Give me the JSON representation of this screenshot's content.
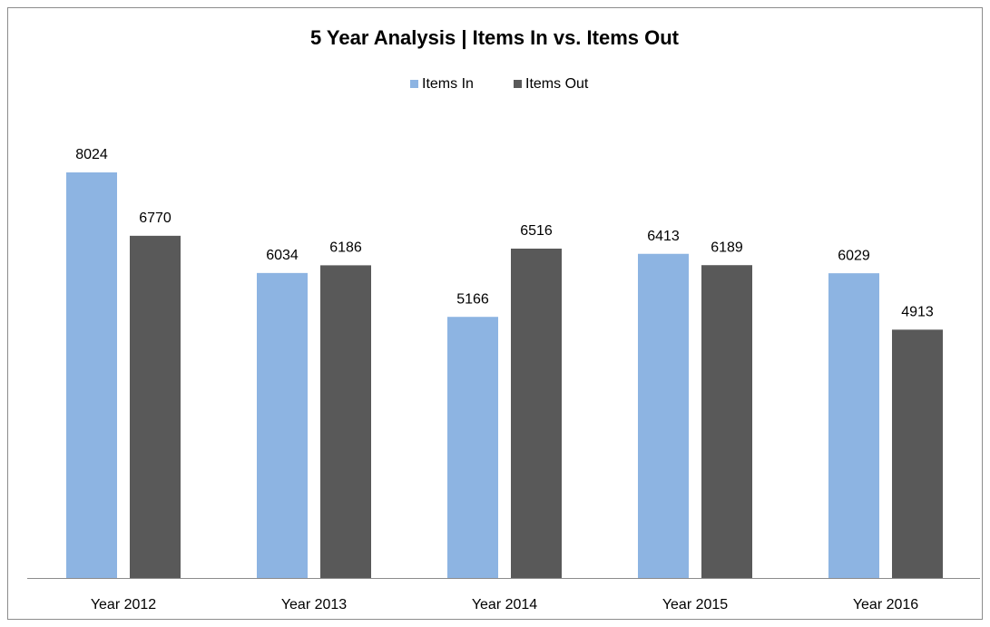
{
  "chart_data": {
    "type": "bar",
    "title": "5 Year Analysis | Items In vs. Items Out",
    "categories": [
      "Year 2012",
      "Year 2013",
      "Year 2014",
      "Year 2015",
      "Year 2016"
    ],
    "series": [
      {
        "name": "Items In",
        "color": "#8db4e2",
        "values": [
          8024,
          6034,
          5166,
          6413,
          6029
        ]
      },
      {
        "name": "Items Out",
        "color": "#595959",
        "values": [
          6770,
          6186,
          6516,
          6189,
          4913
        ]
      }
    ],
    "legend": "top"
  }
}
